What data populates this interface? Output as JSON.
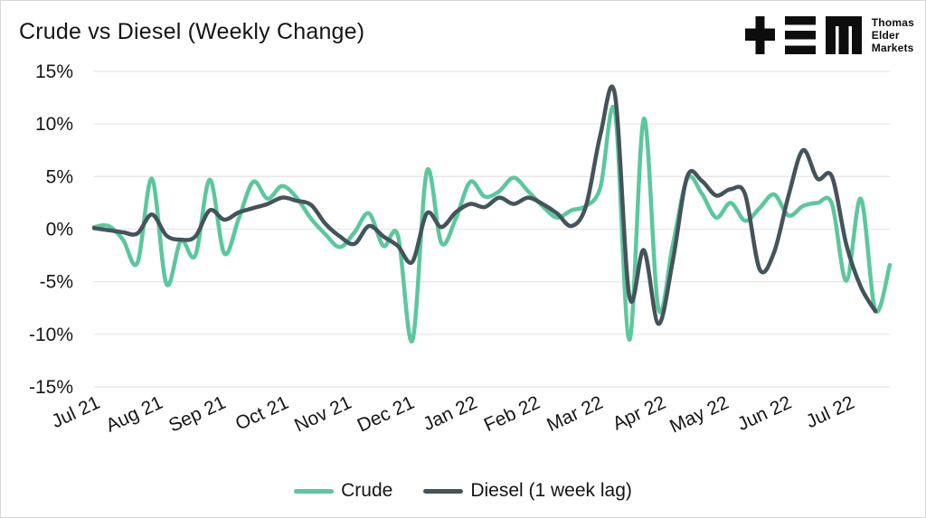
{
  "title": "Crude vs Diesel (Weekly Change)",
  "logo": {
    "line1": "Thomas",
    "line2": "Elder",
    "line3": "Markets",
    "color": "#0d0d0d",
    "glyphs": [
      "plus-icon",
      "triple-bar-icon",
      "m-block-icon"
    ]
  },
  "legend": {
    "items": [
      {
        "label": "Crude",
        "color": "#5cc79d"
      },
      {
        "label": "Diesel (1 week lag)",
        "color": "#44545a"
      }
    ]
  },
  "chart_data": {
    "type": "line",
    "title": "Crude vs Diesel (Weekly Change)",
    "x_unit": "weeks (one point per week, starting early Jul 2021)",
    "x_tick_labels": [
      "Jul 21",
      "Aug 21",
      "Sep 21",
      "Oct 21",
      "Nov 21",
      "Dec 21",
      "Jan 22",
      "Feb 22",
      "Mar 22",
      "Apr 22",
      "May 22",
      "Jun 22",
      "Jul 22"
    ],
    "weeks_per_month": 4.345,
    "y_ticks": [
      15,
      10,
      5,
      0,
      -5,
      -10,
      -15
    ],
    "y_tick_suffix": "%",
    "ylim": [
      -15,
      15
    ],
    "grid": "horizontal-only",
    "grid_color": "#e7e7e7",
    "text_color": "#161616",
    "x_label_rotation_deg": -25,
    "legend_position": "bottom-center",
    "series": [
      {
        "name": "Crude",
        "color": "#5cc79d",
        "values": [
          0.2,
          0.3,
          -1.0,
          -3.2,
          4.8,
          -5.2,
          -1.1,
          -2.5,
          4.7,
          -2.3,
          1.0,
          4.5,
          2.9,
          4.1,
          3.0,
          1.0,
          -0.5,
          -1.7,
          -0.3,
          1.5,
          -1.6,
          -0.6,
          -10.6,
          5.5,
          -1.3,
          1.0,
          4.5,
          3.1,
          3.6,
          4.9,
          3.6,
          2.2,
          1.1,
          1.8,
          2.2,
          4.0,
          11.2,
          -10.5,
          10.5,
          -7.5,
          -1.5,
          4.8,
          3.4,
          1.1,
          2.5,
          0.8,
          2.0,
          3.3,
          1.3,
          2.2,
          2.5,
          2.4,
          -4.9,
          2.9,
          -7.7,
          -3.4
        ]
      },
      {
        "name": "Diesel (1 week lag)",
        "color": "#44545a",
        "values": [
          0.1,
          -0.1,
          -0.3,
          -0.4,
          1.4,
          -0.6,
          -1.0,
          -0.7,
          1.8,
          0.9,
          1.6,
          2.0,
          2.4,
          3.0,
          2.7,
          2.3,
          0.5,
          -0.7,
          -1.4,
          0.3,
          -0.7,
          -1.6,
          -3.1,
          1.5,
          0.2,
          1.6,
          2.4,
          2.1,
          3.0,
          2.4,
          3.0,
          2.4,
          1.5,
          0.3,
          2.2,
          9.0,
          12.8,
          -6.4,
          -2.0,
          -9.0,
          -3.0,
          5.0,
          4.6,
          3.2,
          3.8,
          3.3,
          -3.8,
          -2.2,
          3.2,
          7.5,
          4.8,
          5.0,
          -1.5,
          -5.5,
          -7.8
        ]
      }
    ]
  }
}
